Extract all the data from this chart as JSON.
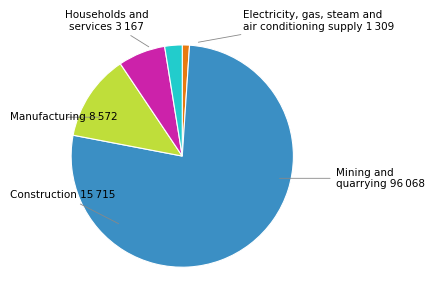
{
  "sectors": [
    "Mining and\nquarrying 96 068",
    "Construction 15 715",
    "Manufacturing 8 572",
    "Households and\nservices 3 167",
    "Electricity, gas, steam and\nair conditioning supply 1 309"
  ],
  "values": [
    96068,
    15715,
    8572,
    3167,
    1309
  ],
  "colors": [
    "#3B8FC4",
    "#BFDE3A",
    "#CC22AA",
    "#22CCCC",
    "#E87A10"
  ],
  "background_color": "#ffffff",
  "text_color": "#000000",
  "font_size": 7.5
}
